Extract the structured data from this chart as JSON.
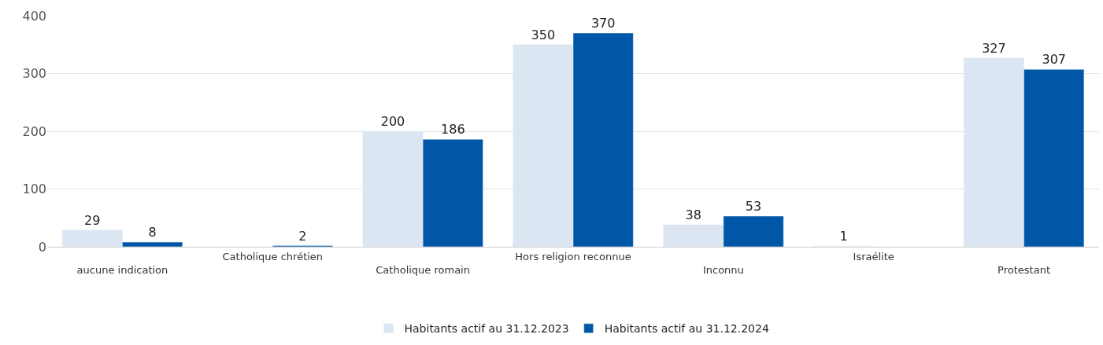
{
  "chart_data": {
    "type": "bar",
    "categories": [
      "aucune indication",
      "Catholique chrétien",
      "Catholique romain",
      "Hors religion reconnue",
      "Inconnu",
      "Israélite",
      "Protestant"
    ],
    "series": [
      {
        "name": "Habitants actif au 31.12.2023",
        "color": "#dce6f2",
        "values": [
          29,
          null,
          200,
          350,
          38,
          1,
          327
        ]
      },
      {
        "name": "Habitants actif au 31.12.2024",
        "color": "#0057a8",
        "values": [
          8,
          2,
          186,
          370,
          53,
          null,
          307
        ]
      }
    ],
    "ylim": [
      0,
      400
    ],
    "yticks": [
      0,
      100,
      200,
      300,
      400
    ],
    "grid": "y",
    "legend": "bottom",
    "data_labels": true
  }
}
